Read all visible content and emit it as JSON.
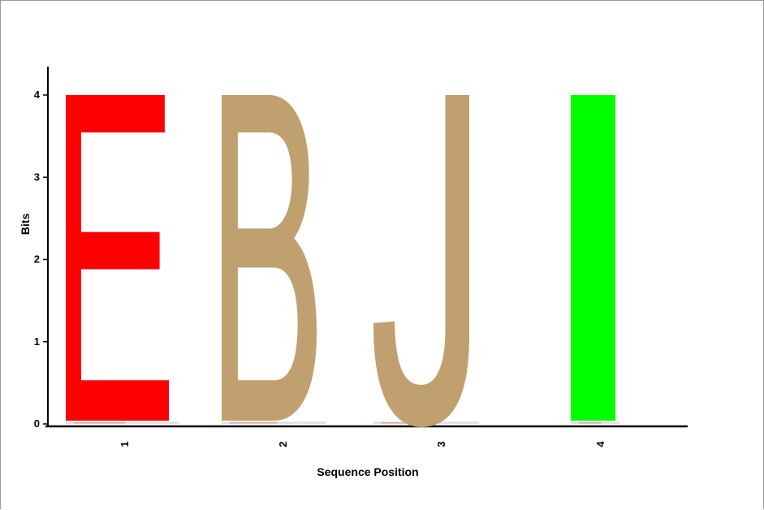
{
  "chart_data": {
    "type": "sequence-logo",
    "ylabel": "Bits",
    "xlabel": "Sequence Position",
    "ylim": [
      0,
      4
    ],
    "yticks": [
      "0",
      "1",
      "2",
      "3",
      "4"
    ],
    "positions": [
      {
        "position": "1",
        "letter": "E",
        "bits": 4,
        "color": "#ff0000"
      },
      {
        "position": "2",
        "letter": "B",
        "bits": 4,
        "color": "#c0a06e"
      },
      {
        "position": "3",
        "letter": "J",
        "bits": 4,
        "color": "#c0a06e"
      },
      {
        "position": "4",
        "letter": "I",
        "bits": 4,
        "color": "#00ff00"
      }
    ]
  }
}
